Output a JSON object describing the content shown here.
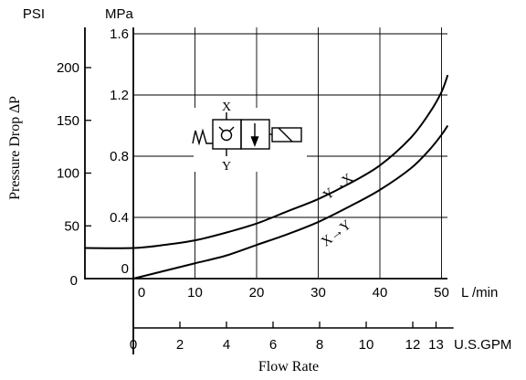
{
  "chart_data": {
    "type": "line",
    "title": "",
    "xlabel": "Flow Rate",
    "ylabel": "Pressure Drop ∆P",
    "axes": {
      "primary_x": {
        "unit": "L /min",
        "ticks": [
          0,
          10,
          20,
          30,
          40,
          50
        ],
        "range": [
          -10,
          52
        ]
      },
      "secondary_x": {
        "unit": "U.S.GPM",
        "ticks": [
          "0",
          "2",
          "4",
          "6",
          "8",
          "10",
          "12",
          "13"
        ],
        "tick_values": [
          0,
          2,
          4,
          6,
          8,
          10,
          12,
          13
        ],
        "range": [
          0,
          13.7
        ]
      },
      "primary_y": {
        "unit": "MPa",
        "ticks": [
          "0",
          "0.4",
          "0.8",
          "1.2",
          "1.6"
        ],
        "tick_values": [
          0,
          0.4,
          0.8,
          1.2,
          1.6
        ],
        "range": [
          0,
          1.62
        ]
      },
      "secondary_y": {
        "unit": "PSI",
        "ticks": [
          "50",
          "100",
          "150",
          "200"
        ],
        "tick_values": [
          50,
          100,
          150,
          200
        ],
        "range": [
          0,
          232
        ]
      }
    },
    "grid": true,
    "series": [
      {
        "name": "Y→X",
        "x": [
          0,
          5,
          10,
          15,
          20,
          25,
          30,
          35,
          40,
          45,
          48,
          50,
          51
        ],
        "y": [
          0.2,
          0.22,
          0.25,
          0.3,
          0.36,
          0.44,
          0.52,
          0.62,
          0.74,
          0.92,
          1.08,
          1.22,
          1.33
        ]
      },
      {
        "name": "X→Y",
        "x": [
          0,
          5,
          10,
          15,
          20,
          25,
          30,
          35,
          40,
          45,
          48,
          50,
          51
        ],
        "y": [
          0.0,
          0.05,
          0.1,
          0.15,
          0.22,
          0.29,
          0.37,
          0.47,
          0.58,
          0.72,
          0.84,
          0.94,
          1.0
        ]
      }
    ]
  },
  "symbol": {
    "port_x": "X",
    "port_y": "Y"
  }
}
